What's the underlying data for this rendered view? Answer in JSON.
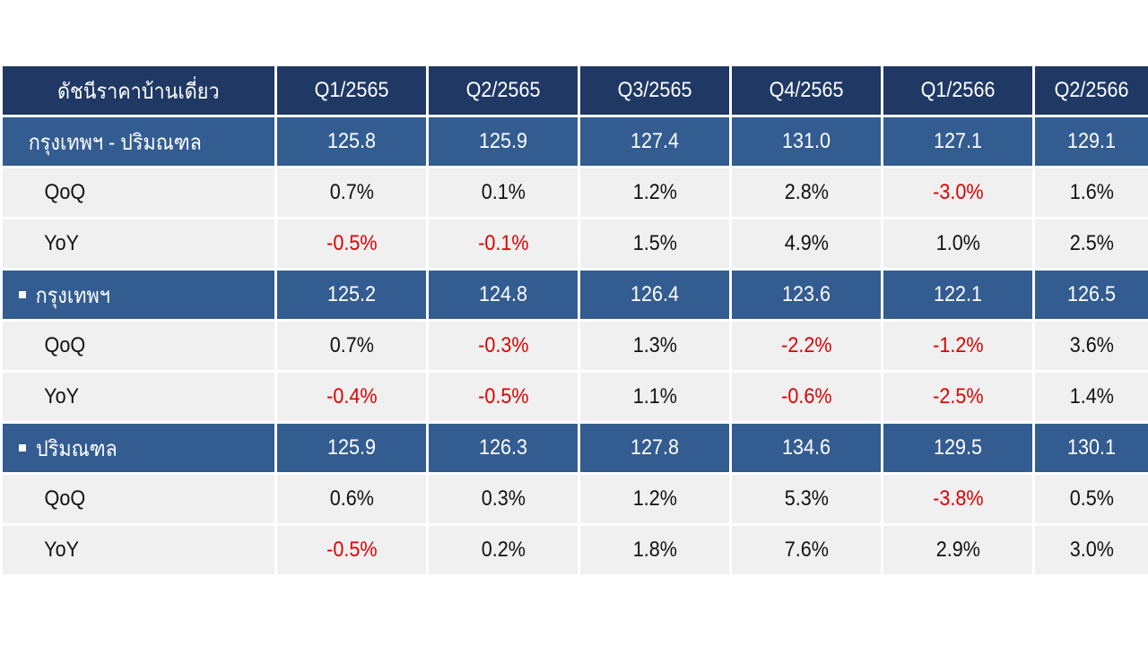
{
  "table": {
    "columns": [
      "ดัชนีราคาบ้านเดี่ยว",
      "Q1/2565",
      "Q2/2565",
      "Q3/2565",
      "Q4/2565",
      "Q1/2566",
      "Q2/2566"
    ],
    "groups": [
      {
        "label": "กรุงเทพฯ - ปริมณฑล",
        "bullet": false,
        "values": [
          "125.8",
          "125.9",
          "127.4",
          "131.0",
          "127.1",
          "129.1"
        ],
        "rows": [
          {
            "label": "QoQ",
            "values": [
              "0.7%",
              "0.1%",
              "1.2%",
              "2.8%",
              "-3.0%",
              "1.6%"
            ]
          },
          {
            "label": "YoY",
            "values": [
              "-0.5%",
              "-0.1%",
              "1.5%",
              "4.9%",
              "1.0%",
              "2.5%"
            ]
          }
        ]
      },
      {
        "label": "กรุงเทพฯ",
        "bullet": true,
        "values": [
          "125.2",
          "124.8",
          "126.4",
          "123.6",
          "122.1",
          "126.5"
        ],
        "rows": [
          {
            "label": "QoQ",
            "values": [
              "0.7%",
              "-0.3%",
              "1.3%",
              "-2.2%",
              "-1.2%",
              "3.6%"
            ]
          },
          {
            "label": "YoY",
            "values": [
              "-0.4%",
              "-0.5%",
              "1.1%",
              "-0.6%",
              "-2.5%",
              "1.4%"
            ]
          }
        ]
      },
      {
        "label": "ปริมณฑล",
        "bullet": true,
        "values": [
          "125.9",
          "126.3",
          "127.8",
          "134.6",
          "129.5",
          "130.1"
        ],
        "rows": [
          {
            "label": "QoQ",
            "values": [
              "0.6%",
              "0.3%",
              "1.2%",
              "5.3%",
              "-3.8%",
              "0.5%"
            ]
          },
          {
            "label": "YoY",
            "values": [
              "-0.5%",
              "0.2%",
              "1.8%",
              "7.6%",
              "2.9%",
              "3.0%"
            ]
          }
        ]
      }
    ]
  },
  "colors": {
    "header_bg": "#1f3864",
    "group_bg": "#335c91",
    "row_bg": "#f0f0f0",
    "negative_text": "#e00000"
  }
}
